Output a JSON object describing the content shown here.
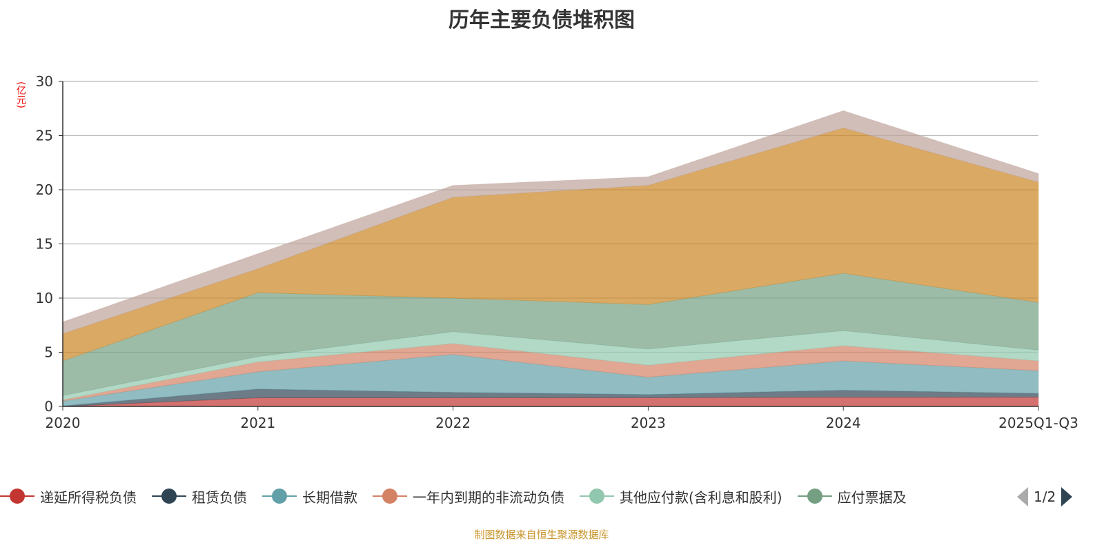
{
  "chart_data": {
    "type": "area",
    "stacked": true,
    "title": "历年主要负债堆积图",
    "ylabel": "(亿元)",
    "xlabel": "",
    "categories": [
      "2020",
      "2021",
      "2022",
      "2023",
      "2024",
      "2025Q1-Q3"
    ],
    "ylim": [
      0,
      30
    ],
    "yticks": [
      0,
      5,
      10,
      15,
      20,
      25,
      30
    ],
    "grid": true,
    "legend_position": "bottom",
    "legend_page": "1/2",
    "series": [
      {
        "name": "递延所得税负债",
        "color": "#c23531",
        "values": [
          0,
          0.8,
          0.8,
          0.8,
          0.85,
          0.85
        ]
      },
      {
        "name": "租赁负债",
        "color": "#2f4554",
        "values": [
          0.05,
          0.8,
          0.5,
          0.3,
          0.65,
          0.35
        ]
      },
      {
        "name": "长期借款",
        "color": "#61a0a8",
        "values": [
          0.45,
          1.6,
          3.5,
          1.6,
          2.7,
          2.1
        ]
      },
      {
        "name": "一年内到期的非流动负债",
        "color": "#d48265",
        "values": [
          0.1,
          0.9,
          1.0,
          1.1,
          1.4,
          0.9
        ]
      },
      {
        "name": "其他应付款(含利息和股利)",
        "color": "#91c7ae",
        "values": [
          0.4,
          0.5,
          1.1,
          1.5,
          1.4,
          1.0
        ]
      },
      {
        "name": "应付票据及",
        "color": "#749f83",
        "values": [
          3.2,
          5.9,
          3.1,
          4.1,
          5.3,
          4.4
        ]
      },
      {
        "name": null,
        "color": "#ca8622",
        "values": [
          2.5,
          2.2,
          9.3,
          11.0,
          13.4,
          11.1
        ]
      },
      {
        "name": null,
        "color": "#bda29a",
        "values": [
          1.1,
          1.4,
          1.1,
          0.8,
          1.6,
          0.8
        ]
      }
    ]
  },
  "source": "制图数据来自恒生聚源数据库"
}
